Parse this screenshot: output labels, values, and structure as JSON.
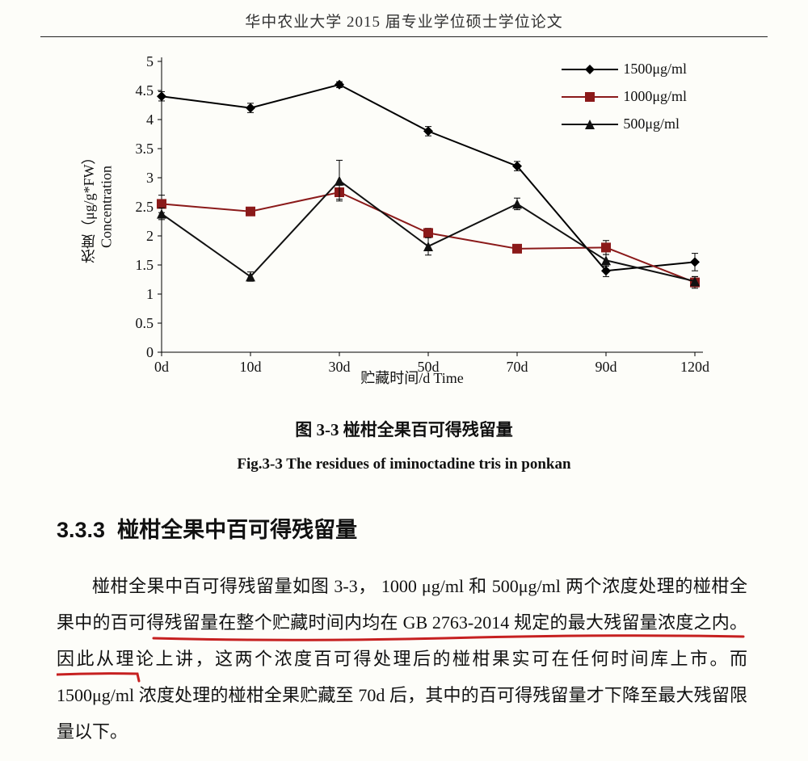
{
  "page_header": "华中农业大学 2015 届专业学位硕士学位论文",
  "chart": {
    "type": "line",
    "background_color": "#fdfdf9",
    "axis_color": "#000000",
    "axis_width": 1,
    "tick_length": 5,
    "tick_label_fontsize": 18,
    "label_fontsize": 18,
    "ylabel_cn": "浓度（μg/g*FW）",
    "ylabel_en": "Concentration",
    "xlabel": "贮藏时间/d Time",
    "yticks": [
      0,
      0.5,
      1,
      1.5,
      2,
      2.5,
      3,
      3.5,
      4,
      4.5,
      5
    ],
    "ylim": [
      0,
      5
    ],
    "xticks": [
      "0d",
      "10d",
      "30d",
      "50d",
      "70d",
      "90d",
      "120d"
    ],
    "x_positions": [
      0,
      1,
      2,
      3,
      4,
      5,
      6
    ],
    "series": [
      {
        "name": "1500μg/ml",
        "marker": "diamond",
        "color": "#000000",
        "line_width": 2,
        "values": [
          4.4,
          4.2,
          4.6,
          3.8,
          3.2,
          1.4,
          1.55
        ],
        "errors": [
          0.08,
          0.08,
          0.05,
          0.08,
          0.08,
          0.1,
          0.15
        ]
      },
      {
        "name": "1000μg/ml",
        "marker": "square",
        "color": "#8b1a1a",
        "line_width": 2,
        "values": [
          2.55,
          2.42,
          2.75,
          2.05,
          1.78,
          1.8,
          1.2
        ],
        "errors": [
          0.15,
          0.05,
          0.12,
          0.08,
          0.05,
          0.12,
          0.1
        ]
      },
      {
        "name": "500μg/ml",
        "marker": "triangle",
        "color": "#111111",
        "line_width": 2,
        "values": [
          2.38,
          1.3,
          2.95,
          1.82,
          2.55,
          1.58,
          1.22
        ],
        "errors": [
          0.1,
          0.08,
          0.35,
          0.15,
          0.1,
          0.1,
          0.08
        ]
      }
    ]
  },
  "caption_cn": "图 3-3  椪柑全果百可得残留量",
  "caption_en": "Fig.3-3 The residues of iminoctadine tris in ponkan",
  "section_number": "3.3.3",
  "section_title": "椪柑全果中百可得残留量",
  "body_text": "椪柑全果中百可得残留量如图 3-3，  1000 μg/ml 和 500μg/ml 两个浓度处理的椪柑全果中的百可得残留量在整个贮藏时间内均在 GB 2763-2014 规定的最大残留量浓度之内。因此从理论上讲，这两个浓度百可得处理后的椪柑果实可在任何时间库上市。而 1500μg/ml 浓度处理的椪柑全果贮藏至 70d 后，其中的百可得残留量才下降至最大残留限量以下。",
  "annotation_color": "#c62020"
}
